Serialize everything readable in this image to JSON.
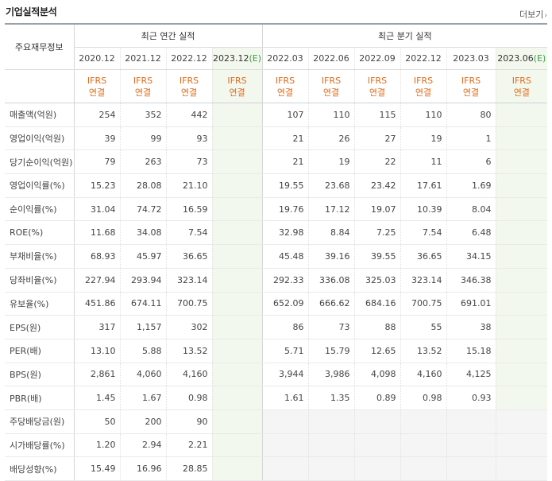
{
  "page": {
    "title": "기업실적분석",
    "more_label": "더보기",
    "more_arrow": "›"
  },
  "table": {
    "row_header_label": "주요재무정보",
    "annual_group_label": "최근 연간 실적",
    "quarter_group_label": "최근 분기 실적",
    "annual_periods": [
      "2020.12",
      "2021.12",
      "2022.12",
      "2023.12"
    ],
    "quarter_periods": [
      "2022.03",
      "2022.06",
      "2022.09",
      "2022.12",
      "2023.03",
      "2023.06"
    ],
    "estimate_mark": "(E)",
    "ifrs_top": "IFRS",
    "ifrs_bottom": "연결",
    "rows": [
      {
        "label": "매출액(억원)",
        "annual": [
          "254",
          "352",
          "442",
          ""
        ],
        "quarter": [
          "107",
          "110",
          "115",
          "110",
          "80",
          ""
        ]
      },
      {
        "label": "영업이익(억원)",
        "annual": [
          "39",
          "99",
          "93",
          ""
        ],
        "quarter": [
          "21",
          "26",
          "27",
          "19",
          "1",
          ""
        ]
      },
      {
        "label": "당기순이익(억원)",
        "annual": [
          "79",
          "263",
          "73",
          ""
        ],
        "quarter": [
          "21",
          "19",
          "22",
          "11",
          "6",
          ""
        ]
      },
      {
        "label": "영업이익률(%)",
        "annual": [
          "15.23",
          "28.08",
          "21.10",
          ""
        ],
        "quarter": [
          "19.55",
          "23.68",
          "23.42",
          "17.61",
          "1.69",
          ""
        ]
      },
      {
        "label": "순이익률(%)",
        "annual": [
          "31.04",
          "74.72",
          "16.59",
          ""
        ],
        "quarter": [
          "19.76",
          "17.12",
          "19.07",
          "10.39",
          "8.04",
          ""
        ]
      },
      {
        "label": "ROE(%)",
        "annual": [
          "11.68",
          "34.08",
          "7.54",
          ""
        ],
        "quarter": [
          "32.98",
          "8.84",
          "7.25",
          "7.54",
          "6.48",
          ""
        ]
      },
      {
        "label": "부채비율(%)",
        "annual": [
          "68.93",
          "45.97",
          "36.65",
          ""
        ],
        "quarter": [
          "45.48",
          "39.16",
          "39.55",
          "36.65",
          "34.15",
          ""
        ]
      },
      {
        "label": "당좌비율(%)",
        "annual": [
          "227.94",
          "293.94",
          "323.14",
          ""
        ],
        "quarter": [
          "292.33",
          "336.08",
          "325.03",
          "323.14",
          "346.38",
          ""
        ]
      },
      {
        "label": "유보율(%)",
        "annual": [
          "451.86",
          "674.11",
          "700.75",
          ""
        ],
        "quarter": [
          "652.09",
          "666.62",
          "684.16",
          "700.75",
          "691.01",
          ""
        ]
      },
      {
        "label": "EPS(원)",
        "annual": [
          "317",
          "1,157",
          "302",
          ""
        ],
        "quarter": [
          "86",
          "73",
          "88",
          "55",
          "38",
          ""
        ]
      },
      {
        "label": "PER(배)",
        "annual": [
          "13.10",
          "5.88",
          "13.52",
          ""
        ],
        "quarter": [
          "5.71",
          "15.79",
          "12.65",
          "13.52",
          "15.18",
          ""
        ]
      },
      {
        "label": "BPS(원)",
        "annual": [
          "2,861",
          "4,060",
          "4,160",
          ""
        ],
        "quarter": [
          "3,944",
          "3,986",
          "4,098",
          "4,160",
          "4,125",
          ""
        ]
      },
      {
        "label": "PBR(배)",
        "annual": [
          "1.45",
          "1.67",
          "0.98",
          ""
        ],
        "quarter": [
          "1.61",
          "1.35",
          "0.89",
          "0.98",
          "0.93",
          ""
        ]
      },
      {
        "label": "주당배당금(원)",
        "annual": [
          "50",
          "200",
          "90",
          ""
        ],
        "quarter": [
          "",
          "",
          "",
          "",
          "",
          ""
        ]
      },
      {
        "label": "시가배당률(%)",
        "annual": [
          "1.20",
          "2.94",
          "2.21",
          ""
        ],
        "quarter": [
          "",
          "",
          "",
          "",
          "",
          ""
        ]
      },
      {
        "label": "배당성향(%)",
        "annual": [
          "15.49",
          "16.96",
          "28.85",
          ""
        ],
        "quarter": [
          "",
          "",
          "",
          "",
          "",
          ""
        ]
      }
    ]
  },
  "colors": {
    "ifrs": "#e06c1c",
    "estimate_mark": "#3b9a43",
    "estimate_bg": "#f3f8ee",
    "dividend_quarter_bg": "#f5f5f5"
  }
}
